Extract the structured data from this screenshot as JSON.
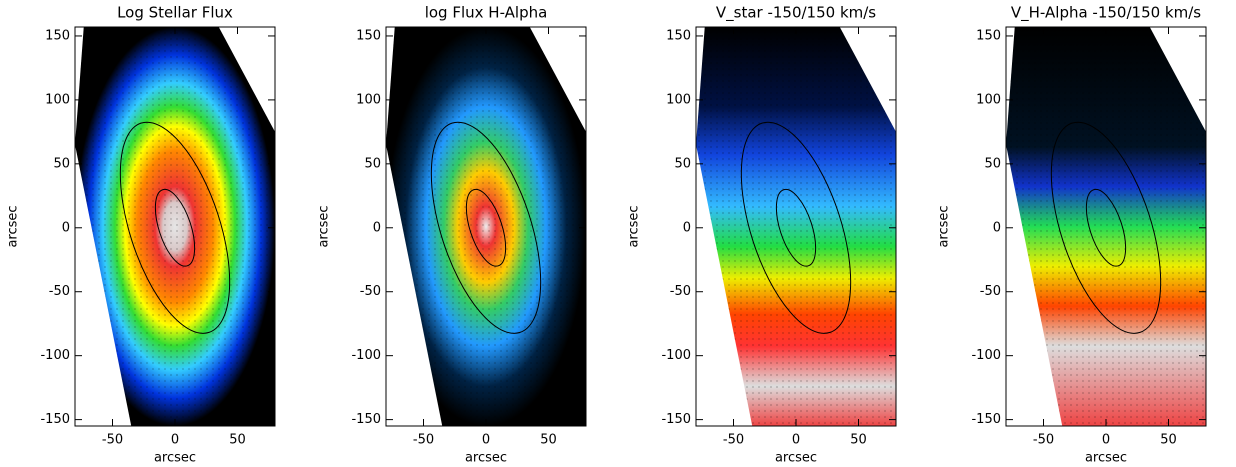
{
  "chart_data": [
    {
      "type": "heatmap",
      "title": "Log Stellar Flux",
      "xlabel": "arcsec",
      "ylabel": "arcsec",
      "xlim": [
        -80,
        80
      ],
      "ylim": [
        -155,
        157
      ],
      "xticks": [
        -50,
        0,
        50
      ],
      "yticks": [
        -150,
        -100,
        -50,
        0,
        50,
        100,
        150
      ]
    },
    {
      "type": "heatmap",
      "title": "log Flux H-Alpha",
      "xlabel": "arcsec",
      "ylabel": "arcsec",
      "xlim": [
        -80,
        80
      ],
      "ylim": [
        -155,
        157
      ],
      "xticks": [
        -50,
        0,
        50
      ],
      "yticks": [
        -150,
        -100,
        -50,
        0,
        50,
        100,
        150
      ]
    },
    {
      "type": "heatmap",
      "title": "V_star -150/150 km/s",
      "xlabel": "arcsec",
      "ylabel": "arcsec",
      "xlim": [
        -80,
        80
      ],
      "ylim": [
        -155,
        157
      ],
      "xticks": [
        -50,
        0,
        50
      ],
      "yticks": [
        -150,
        -100,
        -50,
        0,
        50,
        100,
        150
      ]
    },
    {
      "type": "heatmap",
      "title": "V_H-Alpha -150/150 km/s",
      "xlabel": "arcsec",
      "ylabel": "arcsec",
      "xlim": [
        -80,
        80
      ],
      "ylim": [
        -155,
        157
      ],
      "xticks": [
        -50,
        0,
        50
      ],
      "yticks": [
        -150,
        -100,
        -50,
        0,
        50,
        100,
        150
      ]
    }
  ]
}
